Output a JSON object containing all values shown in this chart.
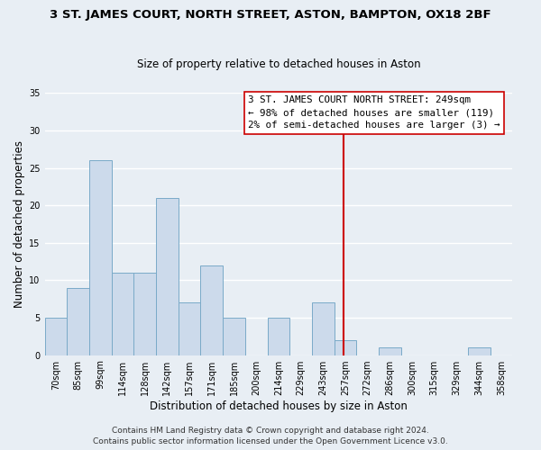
{
  "title": "3 ST. JAMES COURT, NORTH STREET, ASTON, BAMPTON, OX18 2BF",
  "subtitle": "Size of property relative to detached houses in Aston",
  "xlabel": "Distribution of detached houses by size in Aston",
  "ylabel": "Number of detached properties",
  "bin_labels": [
    "70sqm",
    "85sqm",
    "99sqm",
    "114sqm",
    "128sqm",
    "142sqm",
    "157sqm",
    "171sqm",
    "185sqm",
    "200sqm",
    "214sqm",
    "229sqm",
    "243sqm",
    "257sqm",
    "272sqm",
    "286sqm",
    "300sqm",
    "315sqm",
    "329sqm",
    "344sqm",
    "358sqm"
  ],
  "bar_heights": [
    5,
    9,
    26,
    11,
    11,
    21,
    7,
    12,
    5,
    0,
    5,
    0,
    7,
    2,
    0,
    1,
    0,
    0,
    0,
    1,
    0
  ],
  "bar_color": "#ccdaeb",
  "bar_edge_color": "#7aaac8",
  "ref_line_color": "#cc0000",
  "annotation_text": "3 ST. JAMES COURT NORTH STREET: 249sqm\n← 98% of detached houses are smaller (119)\n2% of semi-detached houses are larger (3) →",
  "ylim": [
    0,
    35
  ],
  "yticks": [
    0,
    5,
    10,
    15,
    20,
    25,
    30,
    35
  ],
  "footer_line1": "Contains HM Land Registry data © Crown copyright and database right 2024.",
  "footer_line2": "Contains public sector information licensed under the Open Government Licence v3.0.",
  "bg_color": "#e8eef4",
  "plot_bg_color": "#e8eef4",
  "grid_color": "#ffffff",
  "title_fontsize": 9.5,
  "subtitle_fontsize": 8.5,
  "axis_label_fontsize": 8.5,
  "tick_fontsize": 7,
  "annotation_fontsize": 7.8,
  "footer_fontsize": 6.5
}
